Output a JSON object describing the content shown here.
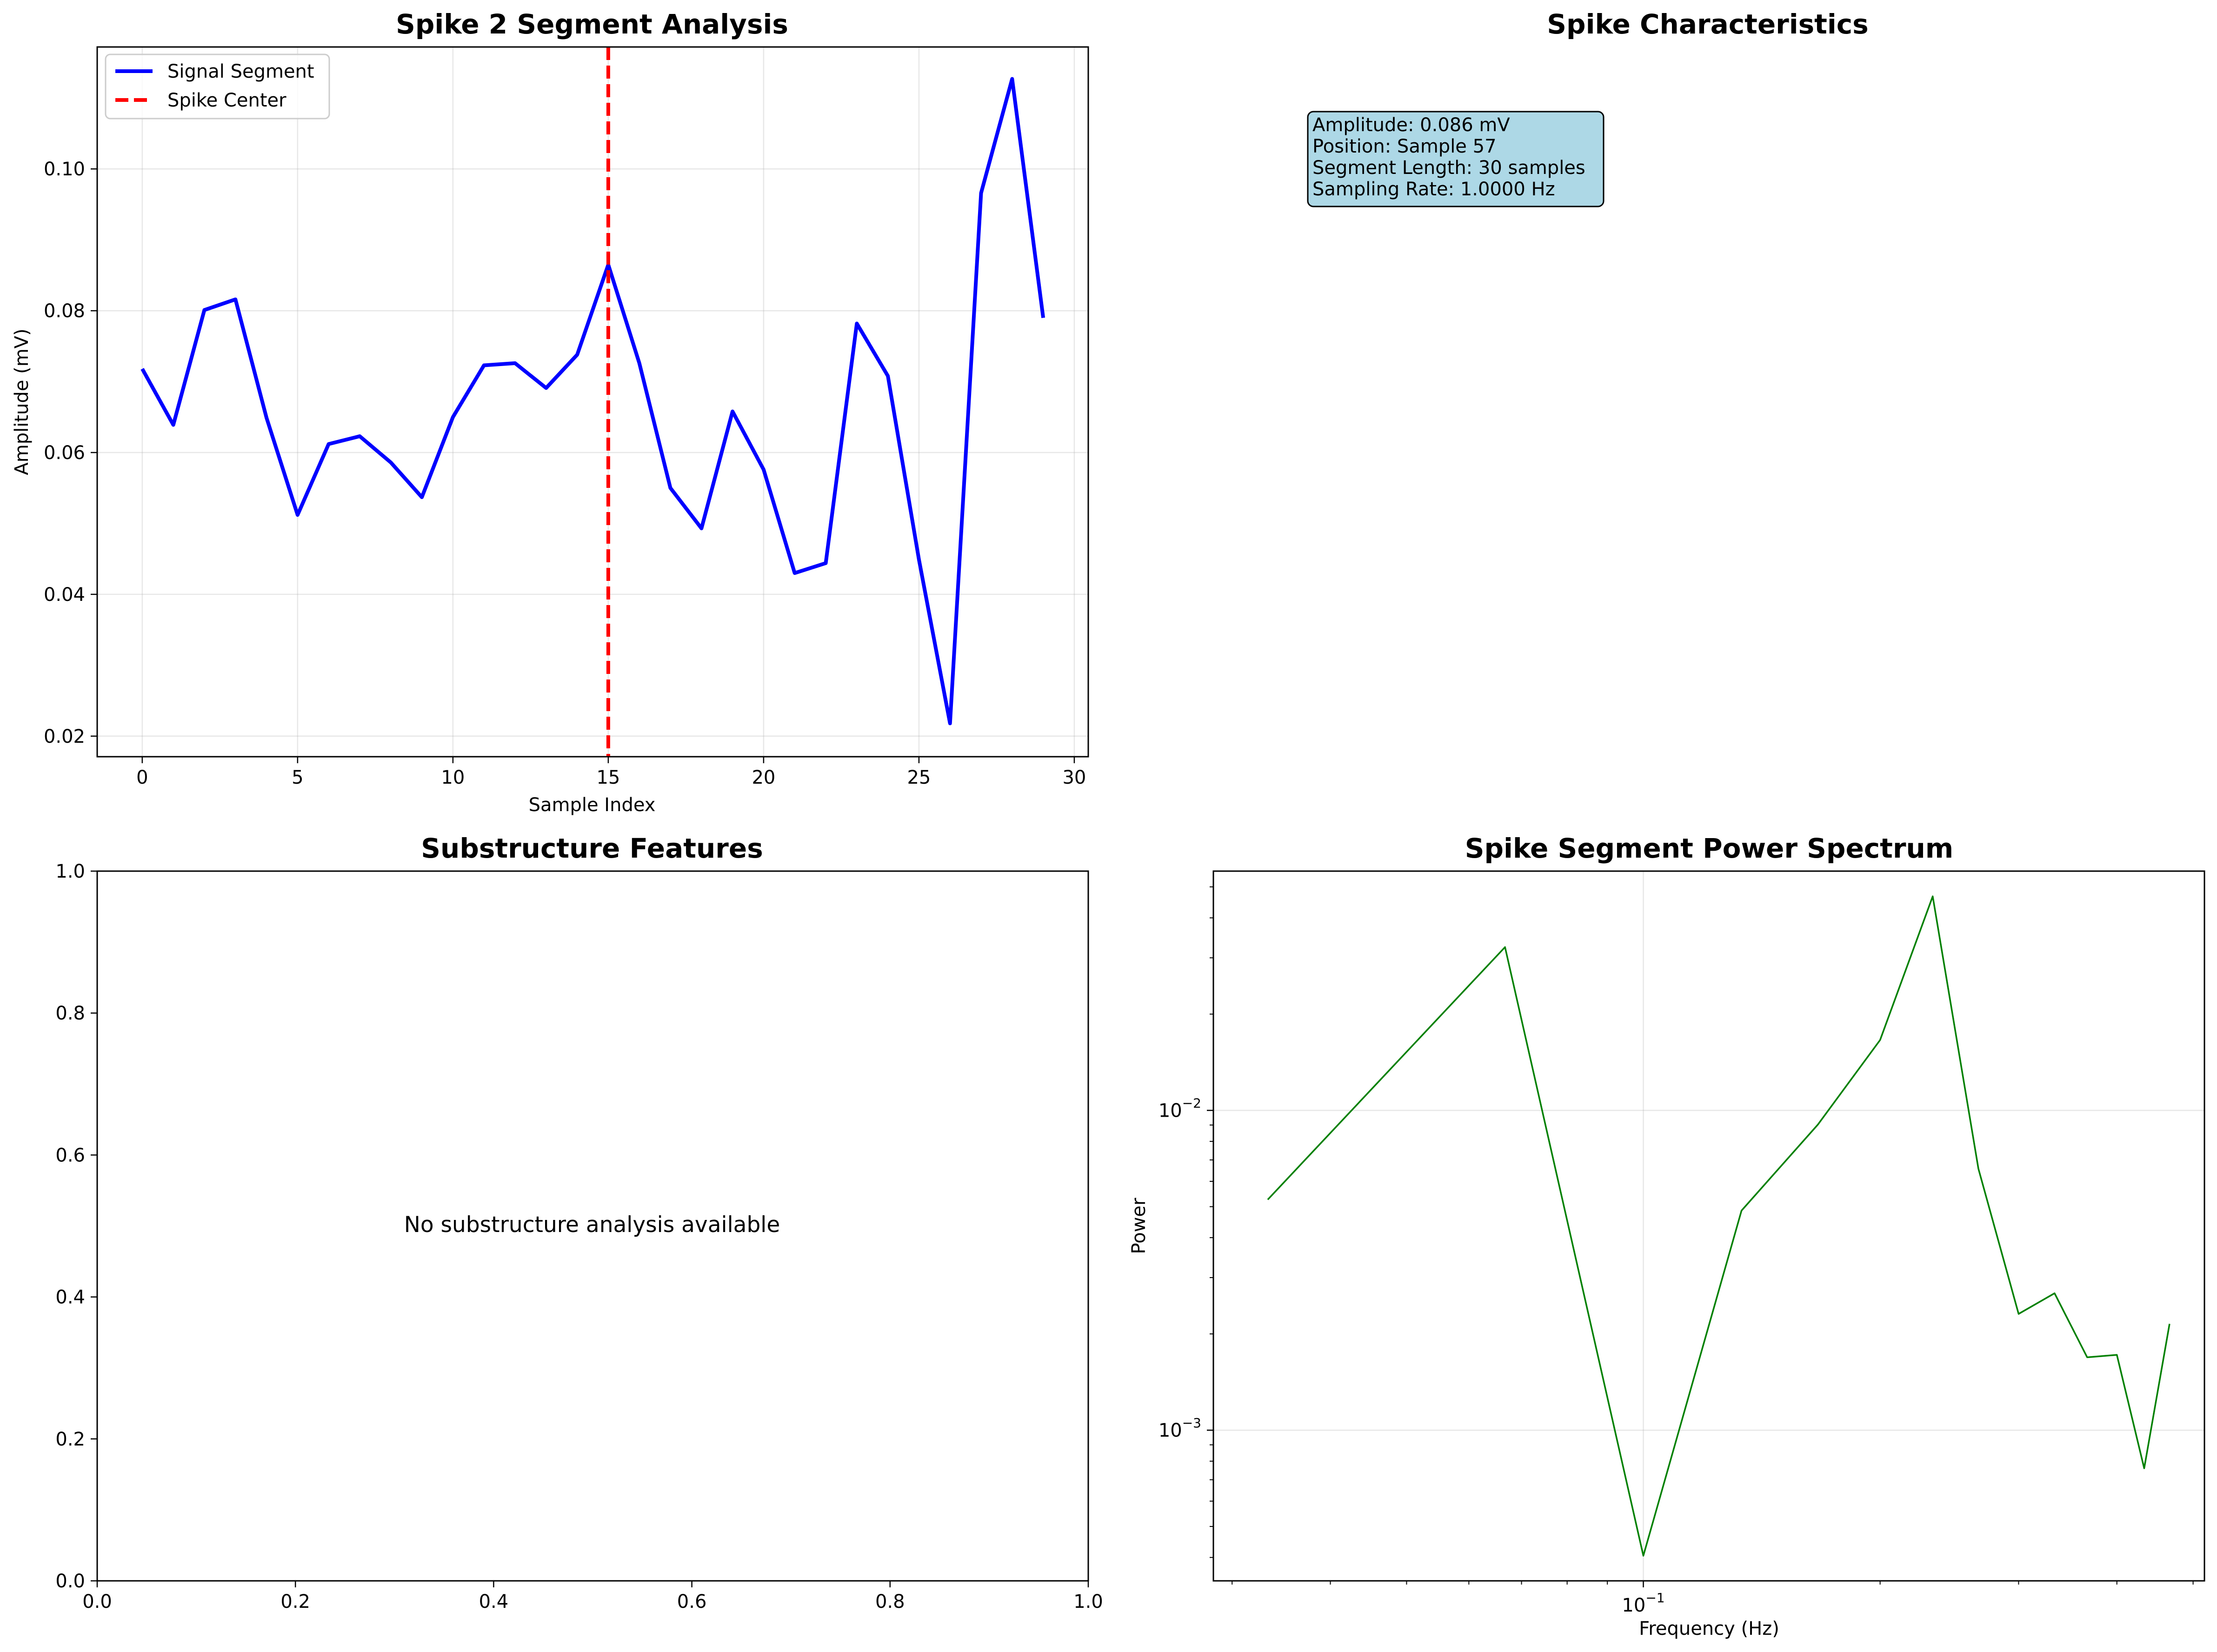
{
  "chart_data": [
    {
      "type": "line",
      "title": "Spike 2 Segment Analysis",
      "xlabel": "Sample Index",
      "ylabel": "Amplitude (mV)",
      "xlim": [
        -1.45,
        30.45
      ],
      "ylim": [
        0.0171,
        0.1172
      ],
      "xticks": [
        0,
        5,
        10,
        15,
        20,
        25,
        30
      ],
      "xtick_labels": [
        "0",
        "5",
        "10",
        "15",
        "20",
        "25",
        "30"
      ],
      "yticks": [
        0.02,
        0.04,
        0.06,
        0.08,
        0.1
      ],
      "ytick_labels": [
        "0.02",
        "0.04",
        "0.06",
        "0.08",
        "0.10"
      ],
      "grid": true,
      "legend": "upper-left",
      "series": [
        {
          "name": "Signal Segment",
          "color": "#0000ff",
          "x": [
            0,
            1,
            2,
            3,
            4,
            5,
            6,
            7,
            8,
            9,
            10,
            11,
            12,
            13,
            14,
            15,
            16,
            17,
            18,
            19,
            20,
            21,
            22,
            23,
            24,
            25,
            26,
            27,
            28,
            29
          ],
          "values": [
            0.0718,
            0.0639,
            0.0801,
            0.0816,
            0.0649,
            0.0512,
            0.0612,
            0.0623,
            0.0586,
            0.0537,
            0.065,
            0.0723,
            0.0726,
            0.0691,
            0.0738,
            0.0865,
            0.0726,
            0.055,
            0.0493,
            0.0658,
            0.0576,
            0.043,
            0.0444,
            0.0782,
            0.0708,
            0.0449,
            0.0218,
            0.0966,
            0.1127,
            0.079
          ]
        }
      ],
      "vline": {
        "name": "Spike Center",
        "x": 15,
        "color": "#ff0000"
      }
    },
    {
      "type": "text",
      "title": "Spike Characteristics",
      "box_color": "#add8e6",
      "lines": [
        "Amplitude: 0.086 mV",
        "Position: Sample 57",
        "Segment Length: 30 samples",
        "Sampling Rate: 1.0000 Hz"
      ]
    },
    {
      "type": "line",
      "title": "Substructure Features",
      "message": "No substructure analysis available",
      "xlim": [
        0,
        1
      ],
      "ylim": [
        0,
        1
      ],
      "xticks": [
        0.0,
        0.2,
        0.4,
        0.6,
        0.8,
        1.0
      ],
      "xtick_labels": [
        "0.0",
        "0.2",
        "0.4",
        "0.6",
        "0.8",
        "1.0"
      ],
      "yticks": [
        0.0,
        0.2,
        0.4,
        0.6,
        0.8,
        1.0
      ],
      "ytick_labels": [
        "0.0",
        "0.2",
        "0.4",
        "0.6",
        "0.8",
        "1.0"
      ],
      "grid": false
    },
    {
      "type": "line",
      "title": "Spike Segment Power Spectrum",
      "xlabel": "Frequency (Hz)",
      "ylabel": "Power",
      "xscale": "log",
      "yscale": "log",
      "xlim": [
        0.0284,
        0.5169
      ],
      "ylim": [
        0.000338,
        0.056
      ],
      "xticks": [
        0.1
      ],
      "xtick_labels": [
        "10^-1"
      ],
      "yticks": [
        0.001,
        0.01
      ],
      "ytick_labels": [
        "10^-3",
        "10^-2"
      ],
      "grid": true,
      "series": [
        {
          "color": "#008000",
          "x": [
            0.0333,
            0.0667,
            0.1,
            0.1333,
            0.1667,
            0.2,
            0.2333,
            0.2667,
            0.3,
            0.3333,
            0.3667,
            0.4,
            0.4333,
            0.4667
          ],
          "values": [
            0.00526,
            0.0324,
            0.000405,
            0.00486,
            0.00903,
            0.0166,
            0.0467,
            0.00657,
            0.00231,
            0.00268,
            0.00169,
            0.00172,
            0.00076,
            0.00215
          ]
        }
      ]
    }
  ]
}
